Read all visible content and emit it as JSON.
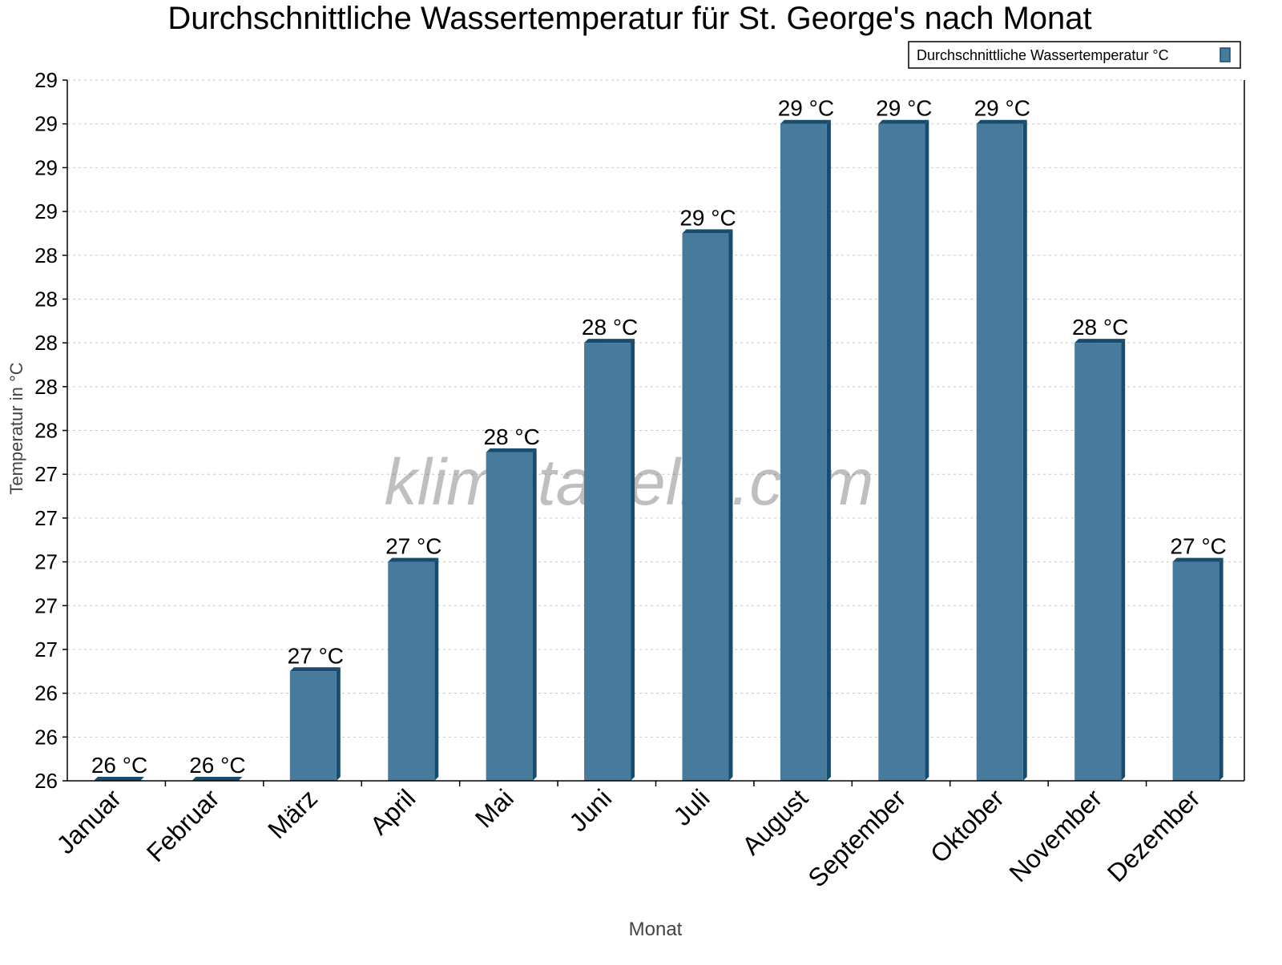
{
  "chart_data": {
    "type": "bar",
    "title": "Durchschnittliche Wassertemperatur für St. George's nach Monat",
    "xlabel": "Monat",
    "ylabel": "Temperatur in °C",
    "categories": [
      "Januar",
      "Februar",
      "März",
      "April",
      "Mai",
      "Juni",
      "Juli",
      "August",
      "September",
      "Oktober",
      "November",
      "Dezember"
    ],
    "series": [
      {
        "name": "Durchschnittliche Wassertemperatur °C",
        "values": [
          26.0,
          26.0,
          26.5,
          27.0,
          27.5,
          28.0,
          28.5,
          29.0,
          29.0,
          29.0,
          28.0,
          27.0
        ],
        "data_labels": [
          "26 °C",
          "26 °C",
          "27 °C",
          "27 °C",
          "28 °C",
          "28 °C",
          "29 °C",
          "29 °C",
          "29 °C",
          "29 °C",
          "28 °C",
          "27 °C"
        ]
      }
    ],
    "ylim": [
      26.0,
      29.2
    ],
    "yticks": [
      26.0,
      26.2,
      26.4,
      26.6,
      26.8,
      27.0,
      27.2,
      27.4,
      27.6,
      27.8,
      28.0,
      28.2,
      28.4,
      28.6,
      28.8,
      29.0,
      29.2
    ],
    "ytick_labels": [
      "26",
      "26",
      "26",
      "27",
      "27",
      "27",
      "27",
      "27",
      "28",
      "28",
      "28",
      "28",
      "28",
      "29",
      "29",
      "29",
      "29"
    ],
    "grid": true,
    "legend": "top-right",
    "colors": {
      "bar": "#467b9e",
      "bar_side": "#174c6e"
    },
    "watermark": "klimatabelle.com"
  }
}
